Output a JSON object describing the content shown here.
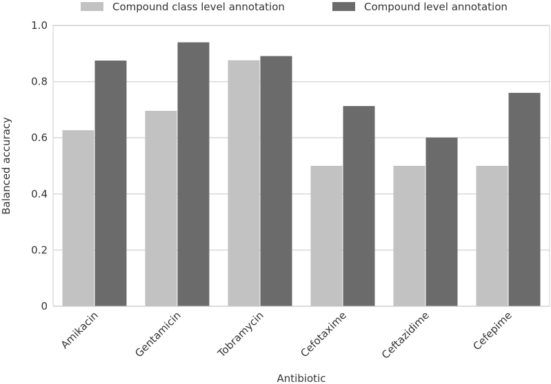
{
  "chart_data": {
    "type": "bar",
    "title": "",
    "xlabel": "Antibiotic",
    "ylabel": "Balanced accuracy",
    "categories": [
      "Amikacin",
      "Gentamicin",
      "Tobramycin",
      "Cefotaxime",
      "Ceftazidime",
      "Cefepime"
    ],
    "series": [
      {
        "name": "Compound class level annotation",
        "color": "#c2c2c2",
        "values": [
          0.627,
          0.696,
          0.876,
          0.5,
          0.5,
          0.5
        ]
      },
      {
        "name": "Compound level annotation",
        "color": "#6b6b6b",
        "values": [
          0.875,
          0.94,
          0.891,
          0.713,
          0.601,
          0.76
        ]
      }
    ],
    "ylim": [
      0,
      1.0
    ],
    "yticks": [
      0,
      0.2,
      0.4,
      0.6,
      0.8,
      1.0
    ],
    "ytick_labels": [
      "0",
      "0.2",
      "0.4",
      "0.6",
      "0.8",
      "1.0"
    ],
    "grid": true,
    "legend_position": "top"
  }
}
